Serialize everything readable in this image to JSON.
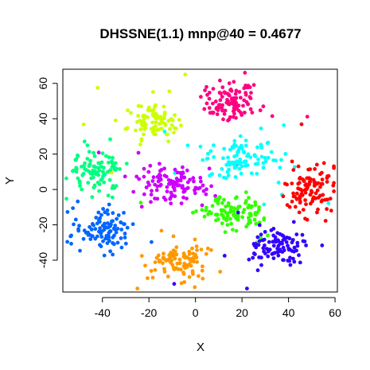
{
  "chart_data": {
    "type": "scatter",
    "title": "DHSSNE(1.1) mnp@40 = 0.4677",
    "xlabel": "X",
    "ylabel": "Y",
    "xlim": [
      -57,
      61
    ],
    "ylim": [
      -58,
      68
    ],
    "x_ticks": [
      -40,
      -20,
      0,
      20,
      40,
      60
    ],
    "y_ticks": [
      -40,
      -20,
      0,
      20,
      40,
      60
    ],
    "x_tick_labels": [
      "-40",
      "-20",
      "0",
      "20",
      "40",
      "60"
    ],
    "y_tick_labels": [
      "-40",
      "-20",
      "0",
      "20",
      "40",
      "60"
    ],
    "grid": false,
    "legend": "none",
    "clusters": [
      {
        "color": "#FF0080",
        "center": [
          15,
          50
        ],
        "spread": [
          6,
          6
        ],
        "count": 110
      },
      {
        "color": "#CCFF00",
        "center": [
          -17,
          38
        ],
        "spread": [
          6,
          4.5
        ],
        "count": 90
      },
      {
        "color": "#00FFFF",
        "center": [
          20,
          18
        ],
        "spread": [
          7,
          5.5
        ],
        "count": 110
      },
      {
        "color": "#00FF80",
        "center": [
          -43,
          10
        ],
        "spread": [
          5.5,
          6
        ],
        "count": 95
      },
      {
        "color": "#CC00FF",
        "center": [
          -11,
          3
        ],
        "spread": [
          7,
          6
        ],
        "count": 115
      },
      {
        "color": "#FF0000",
        "center": [
          49,
          0
        ],
        "spread": [
          5,
          6
        ],
        "count": 110
      },
      {
        "color": "#33FF00",
        "center": [
          16,
          -13
        ],
        "spread": [
          7,
          5
        ],
        "count": 105
      },
      {
        "color": "#0066FF",
        "center": [
          -40,
          -23
        ],
        "spread": [
          6,
          6
        ],
        "count": 105
      },
      {
        "color": "#3300FF",
        "center": [
          35,
          -33
        ],
        "spread": [
          6,
          4.5
        ],
        "count": 100
      },
      {
        "color": "#FF9900",
        "center": [
          -7,
          -40
        ],
        "spread": [
          6,
          5
        ],
        "count": 105
      }
    ]
  }
}
